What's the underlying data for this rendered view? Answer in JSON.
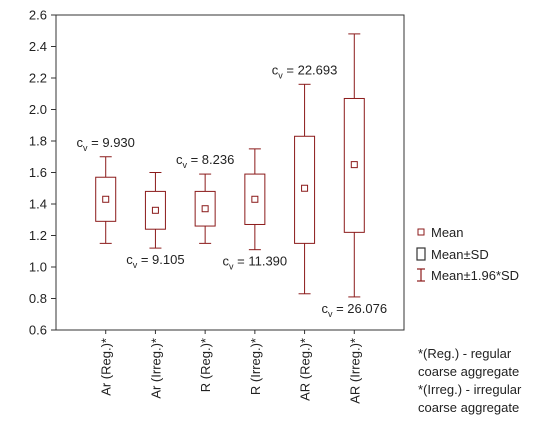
{
  "chart_data": {
    "type": "box",
    "categories": [
      "Ar (Reg.)*",
      "Ar (Irreg.)*",
      "R (Reg.)*",
      "R (Irreg.)*",
      "AR (Reg.)*",
      "AR (Irreg.)*"
    ],
    "boxes": [
      {
        "category": "Ar (Reg.)*",
        "mean": 1.43,
        "sd_low": 1.29,
        "sd_high": 1.57,
        "ci_low": 1.15,
        "ci_high": 1.7,
        "cv": "9.930"
      },
      {
        "category": "Ar (Irreg.)*",
        "mean": 1.36,
        "sd_low": 1.24,
        "sd_high": 1.48,
        "ci_low": 1.12,
        "ci_high": 1.6,
        "cv": "9.105"
      },
      {
        "category": "R (Reg.)*",
        "mean": 1.37,
        "sd_low": 1.26,
        "sd_high": 1.48,
        "ci_low": 1.15,
        "ci_high": 1.59,
        "cv": "8.236"
      },
      {
        "category": "R (Irreg.)*",
        "mean": 1.43,
        "sd_low": 1.27,
        "sd_high": 1.59,
        "ci_low": 1.11,
        "ci_high": 1.75,
        "cv": "11.390"
      },
      {
        "category": "AR (Reg.)*",
        "mean": 1.5,
        "sd_low": 1.15,
        "sd_high": 1.83,
        "ci_low": 0.83,
        "ci_high": 2.16,
        "cv": "22.693"
      },
      {
        "category": "AR (Irreg.)*",
        "mean": 1.65,
        "sd_low": 1.22,
        "sd_high": 2.07,
        "ci_low": 0.81,
        "ci_high": 2.48,
        "cv": "26.076"
      }
    ],
    "cv_label_prefix": "c",
    "cv_label_subscript": "v",
    "cv_label_eq": " = ",
    "cv_label_positions": [
      "above",
      "below",
      "above",
      "below",
      "above",
      "below"
    ],
    "yticks": [
      "0.6",
      "0.8",
      "1.0",
      "1.2",
      "1.4",
      "1.6",
      "1.8",
      "2.0",
      "2.2",
      "2.4",
      "2.6"
    ],
    "ylim": [
      0.6,
      2.6
    ],
    "grid": false,
    "legend_position": "right",
    "legend": [
      {
        "symbol": "mean-marker",
        "label": "Mean"
      },
      {
        "symbol": "sd-box",
        "label": "Mean±SD"
      },
      {
        "symbol": "ci-whisker",
        "label": "Mean±1.96*SD"
      }
    ],
    "footnotes": [
      [
        "*(Reg.) - regular",
        "coarse aggregate"
      ],
      [
        "*(Irreg.) - irregular",
        "coarse aggregate"
      ]
    ],
    "colors": {
      "box": "#8b1a1a",
      "axis": "#333333",
      "text": "#222222"
    }
  }
}
